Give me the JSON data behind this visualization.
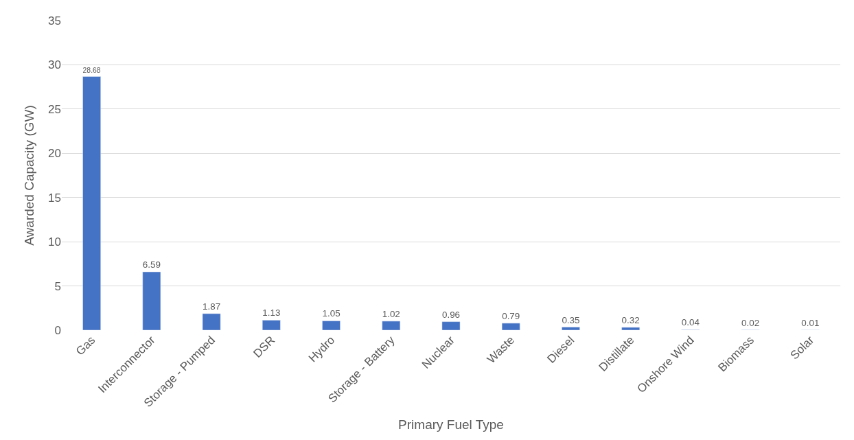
{
  "chart_data": {
    "type": "bar",
    "xlabel": "Primary Fuel Type",
    "ylabel": "Awarded Capacity (GW)",
    "categories": [
      "Gas",
      "Interconnector",
      "Storage - Pumped",
      "DSR",
      "Hydro",
      "Storage - Battery",
      "Nuclear",
      "Waste",
      "Diesel",
      "Distillate",
      "Onshore Wind",
      "Biomass",
      "Solar"
    ],
    "values": [
      28.68,
      6.59,
      1.87,
      1.13,
      1.05,
      1.02,
      0.96,
      0.79,
      0.35,
      0.32,
      0.04,
      0.02,
      0.01
    ],
    "color": "#4472c4",
    "ylim": [
      0,
      35
    ],
    "yticks": [
      0,
      5,
      10,
      15,
      20,
      25,
      30,
      35
    ],
    "grid": "y",
    "data_labels": true
  }
}
